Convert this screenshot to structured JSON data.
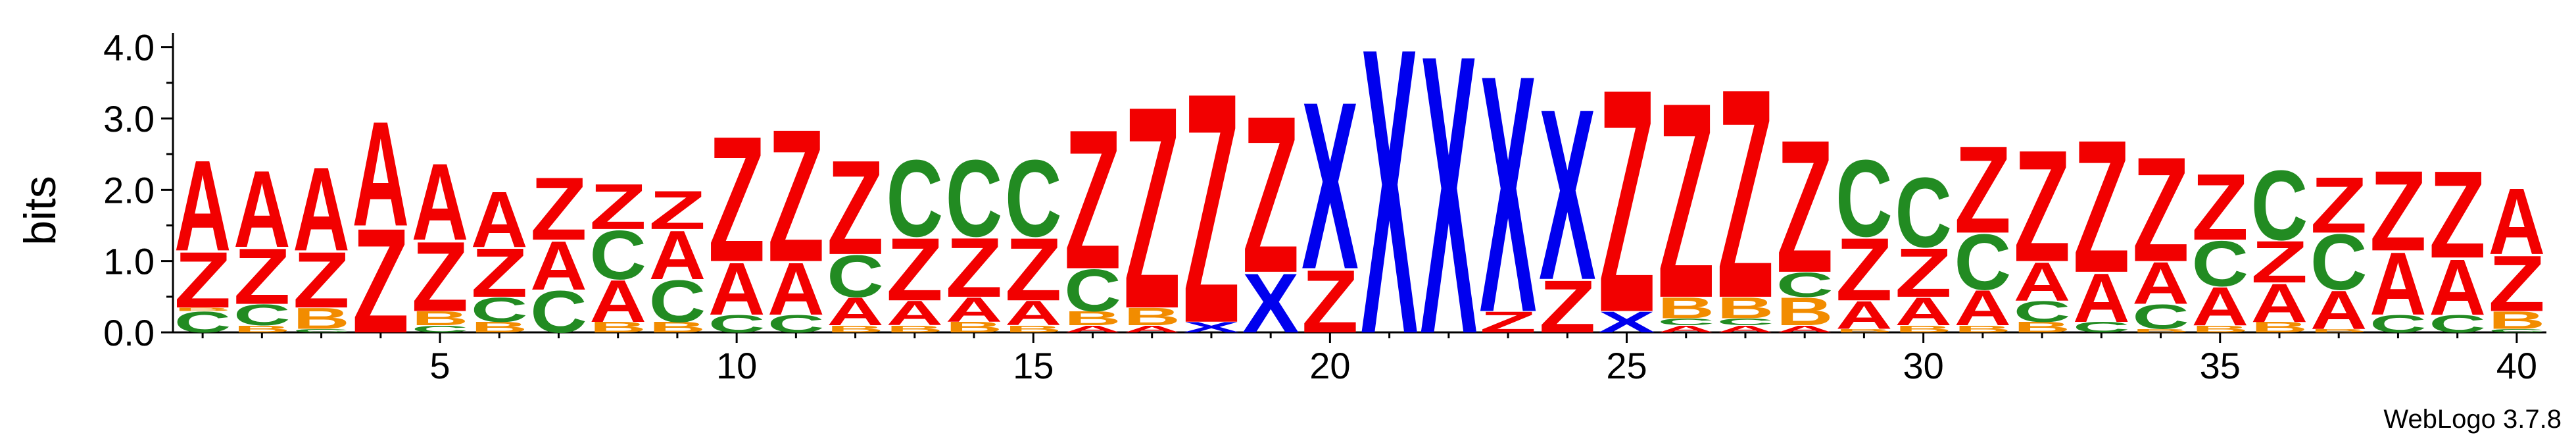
{
  "chart_data": {
    "type": "sequence-logo",
    "ylabel": "bits",
    "ylim": [
      0,
      4.2
    ],
    "yticks": [
      0.0,
      1.0,
      2.0,
      3.0,
      4.0
    ],
    "ytick_labels": [
      "0.0",
      "1.0",
      "2.0",
      "3.0",
      "4.0"
    ],
    "xlim": [
      0.5,
      40.5
    ],
    "xticks": [
      5,
      10,
      15,
      20,
      25,
      30,
      35,
      40
    ],
    "xtick_labels": [
      "5",
      "10",
      "15",
      "20",
      "25",
      "30",
      "35",
      "40"
    ],
    "footer": "WebLogo 3.7.8",
    "colors": {
      "A": "#f20000",
      "Z": "#f20000",
      "C": "#228b22",
      "B": "#f28c00",
      "X": "#0000ee"
    },
    "positions": [
      {
        "pos": 1,
        "stack": [
          [
            "C",
            0.3
          ],
          [
            "B",
            0.05
          ],
          [
            "Z",
            0.8
          ],
          [
            "A",
            1.3
          ]
        ]
      },
      {
        "pos": 2,
        "stack": [
          [
            "B",
            0.1
          ],
          [
            "C",
            0.3
          ],
          [
            "Z",
            0.8
          ],
          [
            "A",
            1.1
          ]
        ]
      },
      {
        "pos": 3,
        "stack": [
          [
            "C",
            0.05
          ],
          [
            "B",
            0.3
          ],
          [
            "Z",
            0.8
          ],
          [
            "A",
            1.2
          ]
        ]
      },
      {
        "pos": 4,
        "stack": [
          [
            "Z",
            1.5
          ],
          [
            "A",
            1.5
          ]
        ]
      },
      {
        "pos": 5,
        "stack": [
          [
            "C",
            0.1
          ],
          [
            "B",
            0.2
          ],
          [
            "Z",
            1.0
          ],
          [
            "A",
            1.1
          ]
        ]
      },
      {
        "pos": 6,
        "stack": [
          [
            "B",
            0.15
          ],
          [
            "C",
            0.35
          ],
          [
            "Z",
            0.7
          ],
          [
            "A",
            0.8
          ]
        ]
      },
      {
        "pos": 7,
        "stack": [
          [
            "C",
            0.6
          ],
          [
            "A",
            0.7
          ],
          [
            "Z",
            0.9
          ]
        ]
      },
      {
        "pos": 8,
        "stack": [
          [
            "B",
            0.15
          ],
          [
            "A",
            0.6
          ],
          [
            "C",
            0.7
          ],
          [
            "Z",
            0.65
          ]
        ]
      },
      {
        "pos": 9,
        "stack": [
          [
            "B",
            0.15
          ],
          [
            "C",
            0.6
          ],
          [
            "A",
            0.7
          ],
          [
            "Z",
            0.55
          ]
        ]
      },
      {
        "pos": 10,
        "stack": [
          [
            "C",
            0.25
          ],
          [
            "A",
            0.75
          ],
          [
            "Z",
            1.8
          ]
        ]
      },
      {
        "pos": 11,
        "stack": [
          [
            "C",
            0.25
          ],
          [
            "A",
            0.75
          ],
          [
            "Z",
            1.9
          ]
        ]
      },
      {
        "pos": 12,
        "stack": [
          [
            "B",
            0.1
          ],
          [
            "A",
            0.4
          ],
          [
            "C",
            0.6
          ],
          [
            "Z",
            1.35
          ]
        ]
      },
      {
        "pos": 13,
        "stack": [
          [
            "B",
            0.1
          ],
          [
            "A",
            0.35
          ],
          [
            "Z",
            0.9
          ],
          [
            "C",
            1.1
          ]
        ]
      },
      {
        "pos": 14,
        "stack": [
          [
            "B",
            0.15
          ],
          [
            "A",
            0.35
          ],
          [
            "Z",
            0.85
          ],
          [
            "C",
            1.1
          ]
        ]
      },
      {
        "pos": 15,
        "stack": [
          [
            "B",
            0.1
          ],
          [
            "A",
            0.35
          ],
          [
            "Z",
            0.9
          ],
          [
            "C",
            1.1
          ]
        ]
      },
      {
        "pos": 16,
        "stack": [
          [
            "A",
            0.1
          ],
          [
            "B",
            0.2
          ],
          [
            "C",
            0.6
          ],
          [
            "Z",
            2.0
          ]
        ]
      },
      {
        "pos": 17,
        "stack": [
          [
            "A",
            0.1
          ],
          [
            "B",
            0.25
          ],
          [
            "Z",
            2.9
          ]
        ]
      },
      {
        "pos": 18,
        "stack": [
          [
            "X",
            0.15
          ],
          [
            "Z",
            3.3
          ]
        ]
      },
      {
        "pos": 19,
        "stack": [
          [
            "X",
            0.85
          ],
          [
            "Z",
            2.25
          ]
        ]
      },
      {
        "pos": 20,
        "stack": [
          [
            "Z",
            0.9
          ],
          [
            "X",
            2.4
          ]
        ]
      },
      {
        "pos": 21,
        "stack": [
          [
            "X",
            4.1
          ]
        ]
      },
      {
        "pos": 22,
        "stack": [
          [
            "X",
            4.0
          ]
        ]
      },
      {
        "pos": 23,
        "stack": [
          [
            "Z",
            0.3
          ],
          [
            "X",
            3.4
          ]
        ]
      },
      {
        "pos": 24,
        "stack": [
          [
            "Z",
            0.75
          ],
          [
            "X",
            2.45
          ]
        ]
      },
      {
        "pos": 25,
        "stack": [
          [
            "X",
            0.3
          ],
          [
            "Z",
            3.2
          ]
        ]
      },
      {
        "pos": 26,
        "stack": [
          [
            "A",
            0.1
          ],
          [
            "C",
            0.1
          ],
          [
            "B",
            0.3
          ],
          [
            "Z",
            2.8
          ]
        ]
      },
      {
        "pos": 27,
        "stack": [
          [
            "A",
            0.1
          ],
          [
            "C",
            0.1
          ],
          [
            "B",
            0.3
          ],
          [
            "Z",
            3.0
          ]
        ]
      },
      {
        "pos": 28,
        "stack": [
          [
            "A",
            0.1
          ],
          [
            "B",
            0.4
          ],
          [
            "C",
            0.35
          ],
          [
            "Z",
            1.9
          ]
        ]
      },
      {
        "pos": 29,
        "stack": [
          [
            "B",
            0.05
          ],
          [
            "A",
            0.4
          ],
          [
            "Z",
            0.9
          ],
          [
            "C",
            1.1
          ]
        ]
      },
      {
        "pos": 30,
        "stack": [
          [
            "B",
            0.1
          ],
          [
            "A",
            0.4
          ],
          [
            "Z",
            0.7
          ],
          [
            "C",
            1.0
          ]
        ]
      },
      {
        "pos": 31,
        "stack": [
          [
            "B",
            0.1
          ],
          [
            "A",
            0.5
          ],
          [
            "C",
            0.8
          ],
          [
            "Z",
            1.25
          ]
        ]
      },
      {
        "pos": 32,
        "stack": [
          [
            "B",
            0.15
          ],
          [
            "C",
            0.3
          ],
          [
            "A",
            0.55
          ],
          [
            "Z",
            1.6
          ]
        ]
      },
      {
        "pos": 33,
        "stack": [
          [
            "C",
            0.15
          ],
          [
            "A",
            0.7
          ],
          [
            "Z",
            1.9
          ]
        ]
      },
      {
        "pos": 34,
        "stack": [
          [
            "B",
            0.05
          ],
          [
            "C",
            0.35
          ],
          [
            "A",
            0.6
          ],
          [
            "Z",
            1.5
          ]
        ]
      },
      {
        "pos": 35,
        "stack": [
          [
            "B",
            0.1
          ],
          [
            "A",
            0.55
          ],
          [
            "C",
            0.65
          ],
          [
            "Z",
            0.95
          ]
        ]
      },
      {
        "pos": 36,
        "stack": [
          [
            "B",
            0.15
          ],
          [
            "A",
            0.55
          ],
          [
            "Z",
            0.6
          ],
          [
            "C",
            1.0
          ]
        ]
      },
      {
        "pos": 37,
        "stack": [
          [
            "B",
            0.05
          ],
          [
            "A",
            0.55
          ],
          [
            "C",
            0.8
          ],
          [
            "Z",
            0.8
          ]
        ]
      },
      {
        "pos": 38,
        "stack": [
          [
            "C",
            0.25
          ],
          [
            "A",
            0.9
          ],
          [
            "Z",
            1.15
          ]
        ]
      },
      {
        "pos": 39,
        "stack": [
          [
            "C",
            0.25
          ],
          [
            "A",
            0.8
          ],
          [
            "Z",
            1.25
          ]
        ]
      },
      {
        "pos": 40,
        "stack": [
          [
            "C",
            0.05
          ],
          [
            "B",
            0.25
          ],
          [
            "Z",
            0.8
          ],
          [
            "A",
            0.95
          ]
        ]
      }
    ]
  }
}
